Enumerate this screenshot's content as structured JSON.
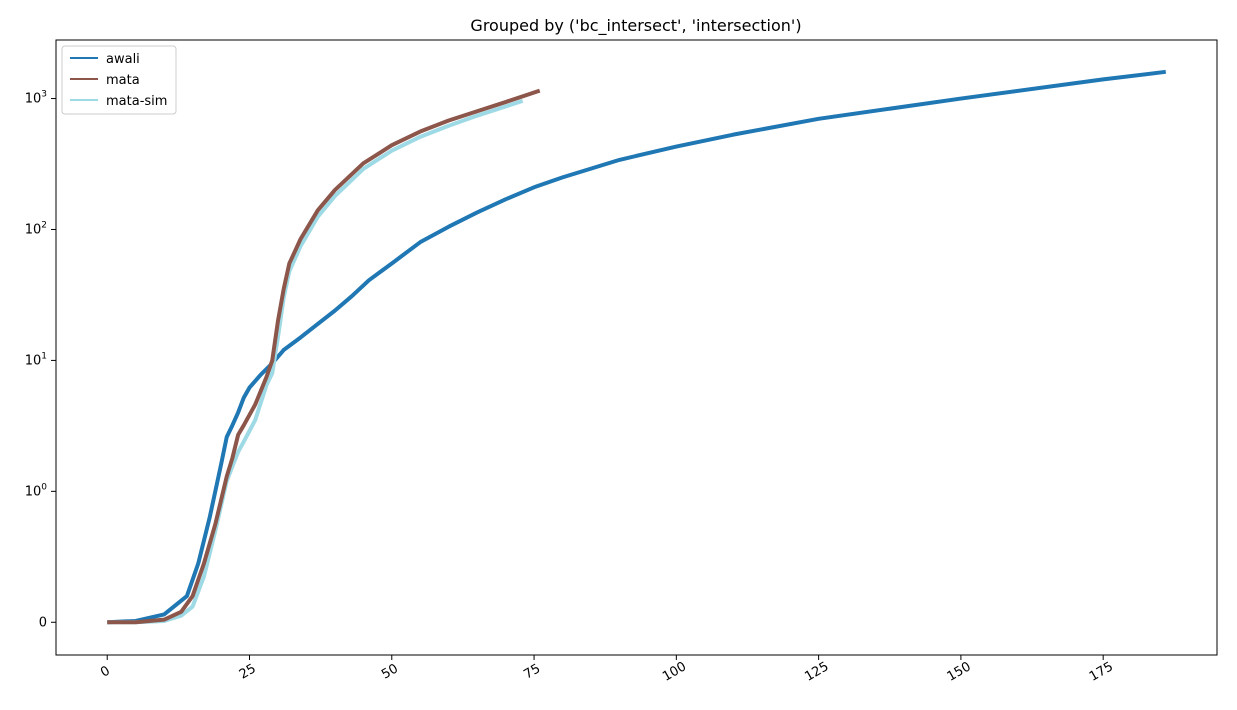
{
  "chart_data": {
    "type": "line",
    "title": "Grouped by ('bc_intersect', 'intersection')",
    "xlabel": "",
    "ylabel": "",
    "xlim": [
      -9,
      195
    ],
    "ylim": [
      -0.25,
      2800
    ],
    "yscale": "symlog",
    "grid": false,
    "legend_position": "top-left",
    "x_ticks": [
      0,
      25,
      50,
      75,
      100,
      125,
      150,
      175
    ],
    "x_tick_labels": [
      "0",
      "25",
      "50",
      "75",
      "100",
      "125",
      "150",
      "175"
    ],
    "y_ticks": [
      {
        "value": 0,
        "label": "0"
      },
      {
        "value": 1,
        "label": "10^0"
      },
      {
        "value": 10,
        "label": "10^1"
      },
      {
        "value": 100,
        "label": "10^2"
      },
      {
        "value": 1000,
        "label": "10^3"
      }
    ],
    "series": [
      {
        "name": "awali",
        "color": "#1f77b4",
        "points": [
          [
            0,
            0
          ],
          [
            5,
            0.01
          ],
          [
            10,
            0.06
          ],
          [
            14,
            0.2
          ],
          [
            16,
            0.45
          ],
          [
            18,
            0.8
          ],
          [
            20,
            1.6
          ],
          [
            21,
            2.6
          ],
          [
            22,
            3.2
          ],
          [
            23,
            4
          ],
          [
            24,
            5.2
          ],
          [
            25,
            6.2
          ],
          [
            27,
            7.8
          ],
          [
            29,
            9.5
          ],
          [
            31,
            12
          ],
          [
            34,
            15
          ],
          [
            37,
            19
          ],
          [
            40,
            24
          ],
          [
            43,
            31
          ],
          [
            46,
            41
          ],
          [
            50,
            55
          ],
          [
            55,
            80
          ],
          [
            60,
            105
          ],
          [
            65,
            135
          ],
          [
            70,
            170
          ],
          [
            75,
            210
          ],
          [
            80,
            250
          ],
          [
            90,
            340
          ],
          [
            100,
            430
          ],
          [
            110,
            530
          ],
          [
            125,
            700
          ],
          [
            150,
            1000
          ],
          [
            175,
            1400
          ],
          [
            186,
            1600
          ]
        ]
      },
      {
        "name": "mata",
        "color": "#8c564b",
        "points": [
          [
            0,
            0
          ],
          [
            5,
            0
          ],
          [
            10,
            0.02
          ],
          [
            13,
            0.08
          ],
          [
            15,
            0.2
          ],
          [
            17,
            0.45
          ],
          [
            19,
            0.75
          ],
          [
            21,
            1.3
          ],
          [
            22,
            1.8
          ],
          [
            23,
            2.7
          ],
          [
            24,
            3.2
          ],
          [
            26,
            4.6
          ],
          [
            28,
            7.5
          ],
          [
            29,
            10
          ],
          [
            30,
            20
          ],
          [
            31,
            35
          ],
          [
            32,
            55
          ],
          [
            34,
            85
          ],
          [
            37,
            140
          ],
          [
            40,
            200
          ],
          [
            45,
            320
          ],
          [
            50,
            440
          ],
          [
            55,
            560
          ],
          [
            60,
            680
          ],
          [
            65,
            800
          ],
          [
            70,
            940
          ],
          [
            76,
            1150
          ]
        ]
      },
      {
        "name": "mata-sim",
        "color": "#9edae5",
        "points": [
          [
            0,
            0
          ],
          [
            5,
            0
          ],
          [
            10,
            0.01
          ],
          [
            13,
            0.05
          ],
          [
            15,
            0.12
          ],
          [
            17,
            0.35
          ],
          [
            19,
            0.7
          ],
          [
            21,
            1.2
          ],
          [
            22,
            1.55
          ],
          [
            23,
            2
          ],
          [
            24,
            2.4
          ],
          [
            26,
            3.5
          ],
          [
            28,
            6.5
          ],
          [
            29,
            8
          ],
          [
            30,
            15
          ],
          [
            31,
            30
          ],
          [
            32,
            48
          ],
          [
            34,
            75
          ],
          [
            37,
            125
          ],
          [
            40,
            180
          ],
          [
            45,
            290
          ],
          [
            50,
            400
          ],
          [
            55,
            510
          ],
          [
            60,
            620
          ],
          [
            65,
            740
          ],
          [
            70,
            870
          ],
          [
            73,
            960
          ]
        ]
      }
    ]
  }
}
